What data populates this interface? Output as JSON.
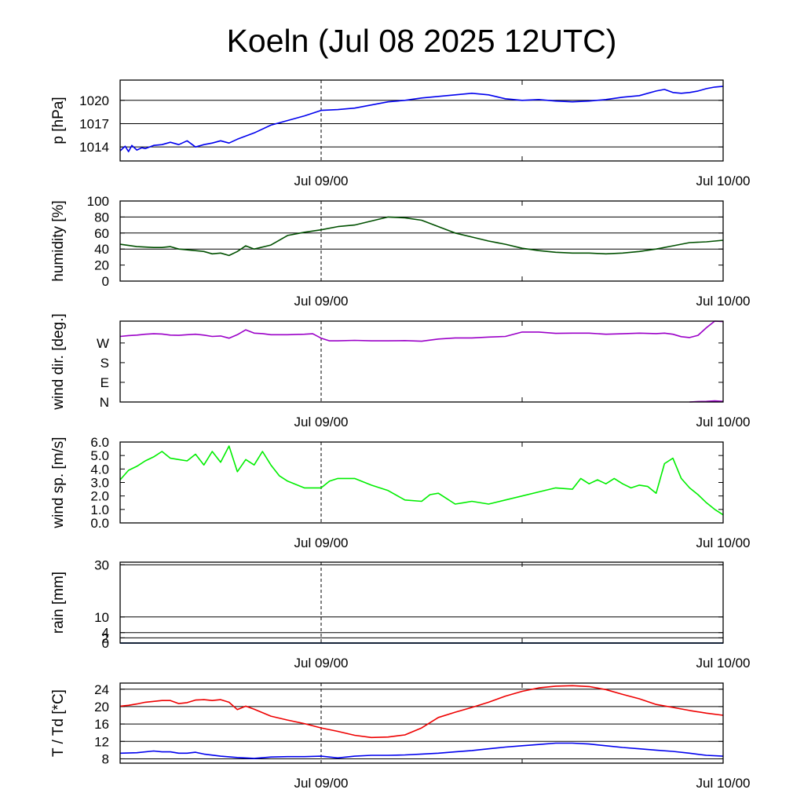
{
  "page": {
    "title": "Koeln (Jul 08 2025 12UTC)"
  },
  "x_axis": {
    "range_hours": [
      0,
      36
    ],
    "midnight_marker_hour": 12,
    "ticks": [
      {
        "hour": 12,
        "label": "Jul 09/00"
      },
      {
        "hour": 36,
        "label": "Jul 10/00"
      }
    ],
    "minor_ticks_hours": [
      24
    ]
  },
  "chart_data": [
    {
      "type": "line",
      "id": "pressure",
      "ylabel": "p [hPa]",
      "ylim": [
        1012.2,
        1022.6
      ],
      "yticks": [
        1014,
        1017,
        1020
      ],
      "ytick_labels": [
        "1014",
        "1017",
        "1020"
      ],
      "grid_y": [
        1014,
        1017,
        1020
      ],
      "series": [
        {
          "color": "#0000ee",
          "x": [
            0,
            0.3,
            0.5,
            0.7,
            1,
            1.3,
            1.5,
            2,
            2.5,
            3,
            3.5,
            4,
            4.5,
            5,
            5.5,
            6,
            6.5,
            7,
            8,
            9,
            10,
            11,
            12,
            13,
            14,
            15,
            16,
            17,
            18,
            19,
            20,
            21,
            22,
            23,
            24,
            25,
            26,
            27,
            28,
            29,
            30,
            31,
            32,
            32.5,
            33,
            33.5,
            34,
            34.5,
            35,
            35.5,
            36
          ],
          "y": [
            1013.5,
            1014.1,
            1013.4,
            1014.2,
            1013.6,
            1013.9,
            1013.8,
            1014.2,
            1014.3,
            1014.6,
            1014.3,
            1014.8,
            1014.0,
            1014.3,
            1014.5,
            1014.8,
            1014.5,
            1015.0,
            1015.8,
            1016.8,
            1017.4,
            1018.0,
            1018.7,
            1018.8,
            1019.0,
            1019.4,
            1019.8,
            1020.0,
            1020.3,
            1020.5,
            1020.7,
            1020.9,
            1020.7,
            1020.2,
            1020.0,
            1020.1,
            1019.9,
            1019.8,
            1019.9,
            1020.1,
            1020.4,
            1020.6,
            1021.2,
            1021.4,
            1021.0,
            1020.9,
            1021.0,
            1021.2,
            1021.5,
            1021.7,
            1021.8
          ]
        }
      ]
    },
    {
      "type": "line",
      "id": "humidity",
      "ylabel": "humidity [%]",
      "ylim": [
        0,
        100
      ],
      "yticks": [
        0,
        20,
        40,
        60,
        80,
        100
      ],
      "ytick_labels": [
        "0",
        "20",
        "40",
        "60",
        "80",
        "100"
      ],
      "grid_y": [
        40,
        60,
        80
      ],
      "series": [
        {
          "color": "#005000",
          "x": [
            0,
            1,
            2,
            2.5,
            3,
            3.5,
            4,
            5,
            5.5,
            6,
            6.5,
            7,
            7.5,
            8,
            9,
            10,
            11,
            12,
            13,
            14,
            15,
            16,
            17,
            18,
            19,
            20,
            21,
            22,
            23,
            24,
            25,
            26,
            27,
            28,
            29,
            30,
            31,
            32,
            33,
            34,
            35,
            36
          ],
          "y": [
            46,
            43,
            42,
            42,
            43,
            40,
            39,
            37,
            34,
            35,
            32,
            37,
            44,
            40,
            45,
            57,
            61,
            64,
            68,
            70,
            75,
            80,
            79,
            76,
            68,
            60,
            55,
            50,
            46,
            41,
            38,
            36,
            35,
            35,
            34,
            35,
            37,
            40,
            44,
            48,
            49,
            51
          ]
        }
      ]
    },
    {
      "type": "line",
      "id": "wind_direction",
      "ylabel": "wind dir. [deg.]",
      "ylim": [
        0,
        370
      ],
      "yticks": [
        0,
        90,
        180,
        270
      ],
      "ytick_labels": [
        "N",
        "E",
        "S",
        "W"
      ],
      "grid_y": [],
      "series": [
        {
          "color": "#9b00c8",
          "x": [
            0,
            0.5,
            1,
            1.5,
            2,
            2.5,
            3,
            3.5,
            4,
            4.5,
            5,
            5.5,
            6,
            6.5,
            7,
            7.5,
            8,
            8.5,
            9,
            10,
            11,
            11.5,
            12,
            12.5,
            13,
            14,
            15,
            16,
            17,
            18,
            19,
            20,
            21,
            22,
            23,
            24,
            25,
            26,
            27,
            28,
            29,
            30,
            31,
            32,
            32.5,
            33,
            33.5,
            34,
            34.5,
            35,
            35.5,
            36
          ],
          "y": [
            300,
            304,
            306,
            310,
            312,
            311,
            306,
            305,
            308,
            310,
            306,
            300,
            302,
            292,
            308,
            330,
            315,
            313,
            308,
            308,
            310,
            312,
            292,
            280,
            280,
            282,
            280,
            280,
            281,
            278,
            288,
            293,
            293,
            297,
            300,
            320,
            320,
            314,
            315,
            315,
            310,
            312,
            315,
            313,
            315,
            310,
            299,
            295,
            305,
            340,
            370,
            368
          ]
        },
        {
          "color": "#9b00c8",
          "x": [
            34,
            34.5,
            35,
            35.5,
            36
          ],
          "y": [
            0,
            2,
            3,
            5,
            3
          ]
        }
      ]
    },
    {
      "type": "line",
      "id": "wind_speed",
      "ylabel": "wind sp. [m/s]",
      "ylim": [
        0,
        6
      ],
      "yticks": [
        0,
        1,
        2,
        3,
        4,
        5,
        6
      ],
      "ytick_labels": [
        "0.0",
        "1.0",
        "2.0",
        "3.0",
        "4.0",
        "5.0",
        "6.0"
      ],
      "grid_y": [],
      "series": [
        {
          "color": "#00ee00",
          "x": [
            0,
            0.5,
            1,
            1.5,
            2,
            2.5,
            3,
            3.5,
            4,
            4.5,
            5,
            5.5,
            6,
            6.5,
            7,
            7.5,
            8,
            8.5,
            9,
            9.5,
            10,
            11,
            12,
            12.5,
            13,
            14,
            15,
            16,
            17,
            18,
            18.5,
            19,
            19.5,
            20,
            20.5,
            21,
            22,
            23,
            24,
            25,
            26,
            27,
            27.5,
            28,
            28.5,
            29,
            29.5,
            30,
            30.5,
            31,
            31.5,
            32,
            32.5,
            33,
            33.5,
            34,
            34.5,
            35,
            35.5,
            36
          ],
          "y": [
            3.2,
            3.9,
            4.2,
            4.6,
            4.9,
            5.3,
            4.8,
            4.7,
            4.6,
            5.1,
            4.3,
            5.3,
            4.5,
            5.7,
            3.8,
            4.7,
            4.3,
            5.3,
            4.3,
            3.5,
            3.1,
            2.6,
            2.6,
            3.1,
            3.3,
            3.3,
            2.8,
            2.4,
            1.7,
            1.6,
            2.1,
            2.2,
            1.8,
            1.4,
            1.5,
            1.6,
            1.4,
            1.7,
            2.0,
            2.3,
            2.6,
            2.5,
            3.3,
            2.9,
            3.2,
            2.9,
            3.3,
            2.9,
            2.6,
            2.8,
            2.7,
            2.2,
            4.4,
            4.8,
            3.3,
            2.6,
            2.1,
            1.5,
            1.0,
            0.6
          ]
        }
      ]
    },
    {
      "type": "line",
      "id": "rain",
      "ylabel": "rain [mm]",
      "ylim": [
        0,
        31
      ],
      "yticks": [
        0,
        2,
        4,
        10,
        30
      ],
      "ytick_labels": [
        "0",
        "2",
        "4",
        "10",
        "30"
      ],
      "grid_y": [
        2,
        4,
        10,
        30
      ],
      "series": [
        {
          "color": "#00a000",
          "x": [
            0,
            36
          ],
          "y": [
            0,
            0
          ]
        },
        {
          "color": "#0000c8",
          "x": [
            0,
            36
          ],
          "y": [
            0,
            0
          ]
        }
      ]
    },
    {
      "type": "line",
      "id": "temperature",
      "ylabel": "T / Td [*C]",
      "ylim": [
        7,
        25.4
      ],
      "yticks": [
        8,
        12,
        16,
        20,
        24
      ],
      "ytick_labels": [
        "8",
        "12",
        "16",
        "20",
        "24"
      ],
      "grid_y": [
        8,
        12,
        16,
        20,
        24
      ],
      "series": [
        {
          "color": "#ee0000",
          "x": [
            0,
            0.5,
            1,
            1.5,
            2,
            2.5,
            3,
            3.5,
            4,
            4.5,
            5,
            5.5,
            6,
            6.5,
            7,
            7.5,
            8,
            9,
            10,
            11,
            12,
            13,
            14,
            15,
            16,
            17,
            18,
            19,
            20,
            21,
            22,
            23,
            24,
            25,
            26,
            27,
            28,
            29,
            30,
            31,
            32,
            33,
            34,
            35,
            36
          ],
          "y": [
            20.1,
            20.3,
            20.6,
            21.0,
            21.2,
            21.4,
            21.4,
            20.7,
            20.9,
            21.5,
            21.6,
            21.4,
            21.6,
            21.0,
            19.3,
            20.1,
            19.4,
            17.8,
            16.9,
            16.1,
            15.1,
            14.3,
            13.4,
            12.9,
            13.0,
            13.5,
            15.1,
            17.5,
            18.7,
            19.8,
            21.0,
            22.4,
            23.5,
            24.3,
            24.7,
            24.8,
            24.6,
            23.9,
            22.8,
            21.8,
            20.5,
            19.8,
            19.1,
            18.5,
            18.0
          ]
        },
        {
          "color": "#0000ee",
          "x": [
            0,
            1,
            2,
            2.5,
            3,
            3.5,
            4,
            4.5,
            5,
            6,
            7,
            8,
            9,
            10,
            11,
            12,
            13,
            14,
            15,
            16,
            17,
            18,
            19,
            20,
            21,
            22,
            23,
            24,
            25,
            26,
            27,
            28,
            29,
            30,
            31,
            32,
            33,
            34,
            35,
            36
          ],
          "y": [
            9.3,
            9.4,
            9.8,
            9.6,
            9.6,
            9.3,
            9.3,
            9.5,
            9.1,
            8.6,
            8.3,
            8.1,
            8.4,
            8.5,
            8.5,
            8.6,
            8.2,
            8.6,
            8.8,
            8.8,
            8.9,
            9.1,
            9.3,
            9.6,
            9.9,
            10.3,
            10.7,
            11.0,
            11.3,
            11.6,
            11.6,
            11.4,
            11.0,
            10.6,
            10.3,
            10.0,
            9.7,
            9.3,
            8.8,
            8.6
          ]
        }
      ]
    }
  ]
}
